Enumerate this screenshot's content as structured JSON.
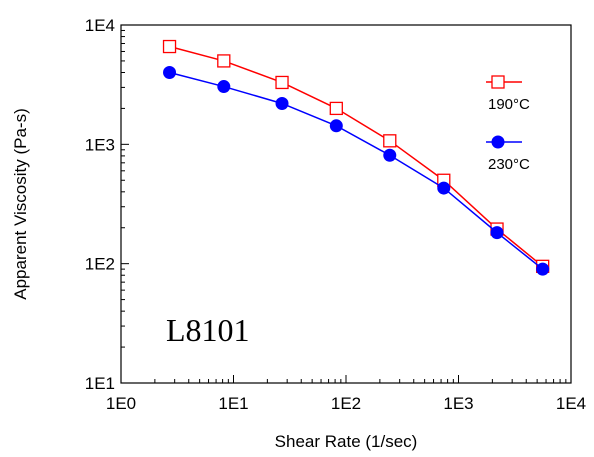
{
  "chart_data": {
    "type": "line",
    "xscale": "log",
    "yscale": "log",
    "xlim": [
      1,
      10000
    ],
    "ylim": [
      10,
      10000
    ],
    "xlabel": "Shear Rate (1/sec)",
    "ylabel": "Apparent Viscosity (Pa-s)",
    "xticks": [
      {
        "value": 1,
        "label": "1E0"
      },
      {
        "value": 10,
        "label": "1E1"
      },
      {
        "value": 100,
        "label": "1E2"
      },
      {
        "value": 1000,
        "label": "1E3"
      },
      {
        "value": 10000,
        "label": "1E4"
      }
    ],
    "yticks": [
      {
        "value": 10,
        "label": "1E1"
      },
      {
        "value": 100,
        "label": "1E2"
      },
      {
        "value": 1000,
        "label": "1E3"
      },
      {
        "value": 10000,
        "label": "1E4"
      }
    ],
    "annotation": "L8101",
    "grid": false,
    "legend_position": "right",
    "series": [
      {
        "name": "190°C",
        "color": "#ff0000",
        "marker": "open-square",
        "x": [
          2.7,
          8.2,
          27,
          82,
          245,
          740,
          2200,
          5600
        ],
        "y": [
          6600,
          5000,
          3300,
          2000,
          1070,
          500,
          195,
          95
        ]
      },
      {
        "name": "230°C",
        "color": "#0000ff",
        "marker": "filled-circle",
        "x": [
          2.7,
          8.2,
          27,
          82,
          245,
          740,
          2200,
          5600
        ],
        "y": [
          4000,
          3050,
          2200,
          1430,
          810,
          430,
          182,
          90
        ]
      }
    ]
  }
}
